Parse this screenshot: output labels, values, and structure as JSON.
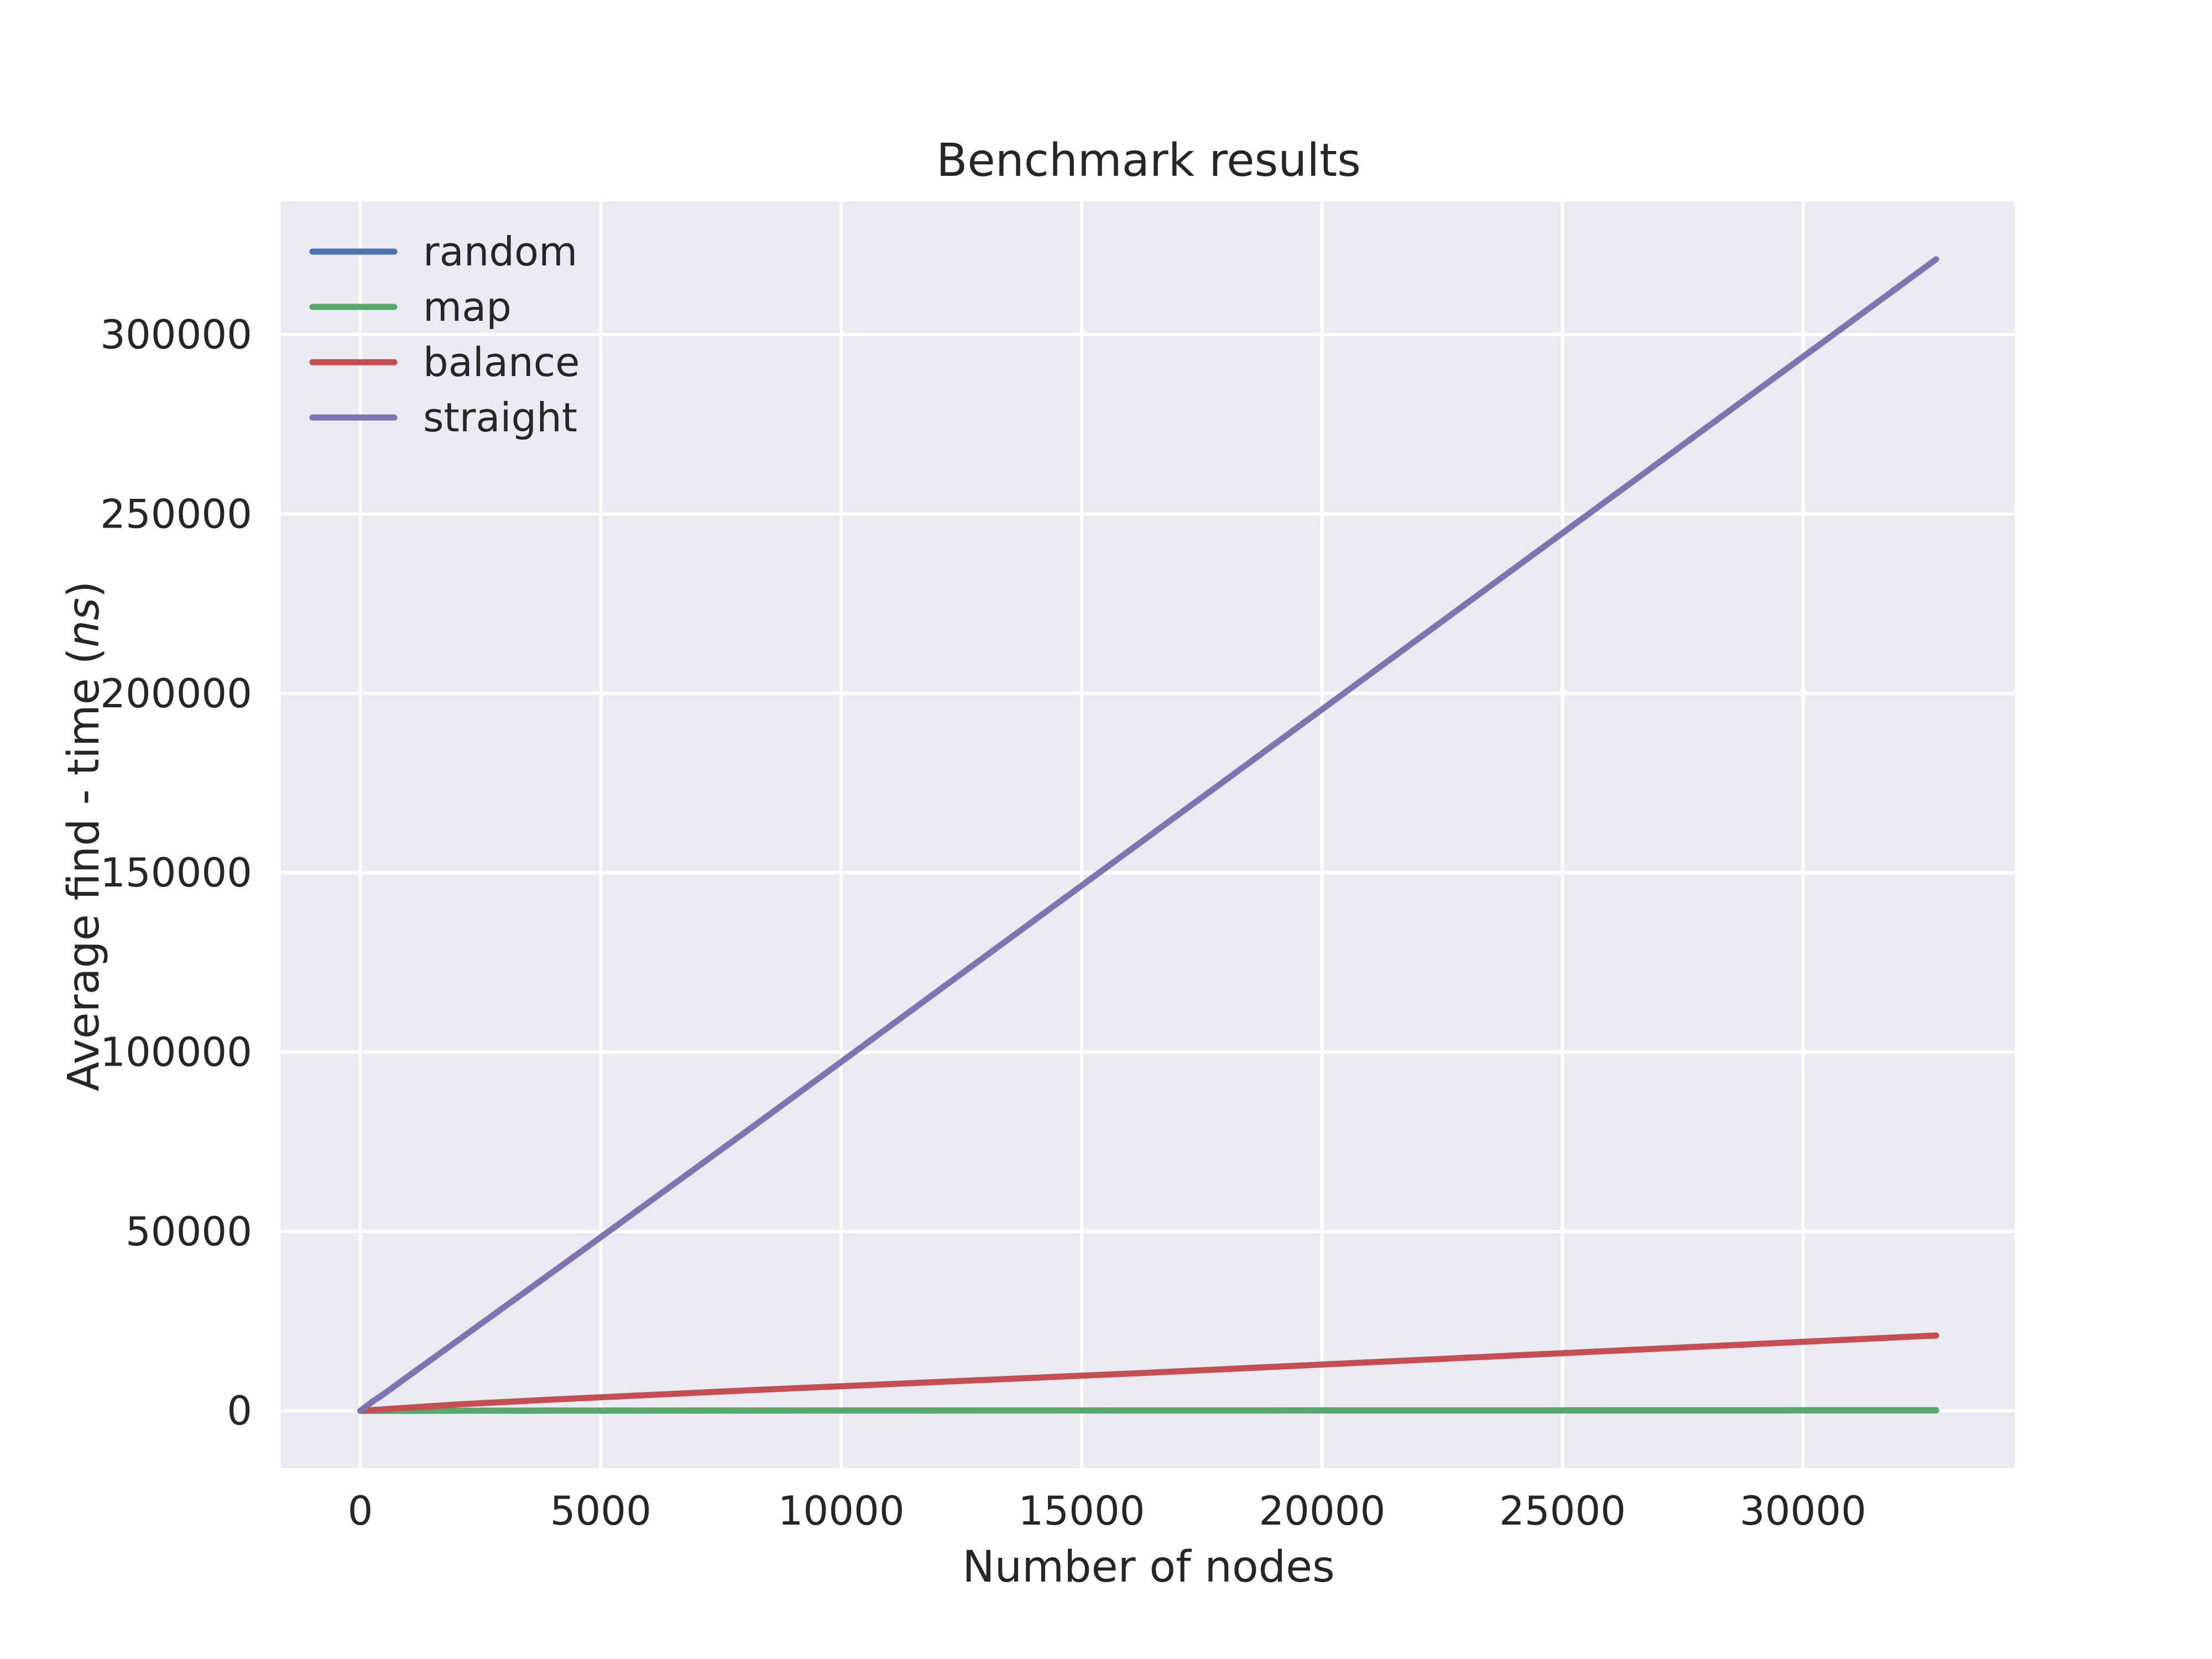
{
  "chart_data": {
    "type": "line",
    "title": "Benchmark results",
    "xlabel": "Number of nodes",
    "ylabel": {
      "prefix": "Average find - time (",
      "italic": "ns",
      "suffix": ")"
    },
    "xlim": [
      -1650,
      34400
    ],
    "ylim": [
      -16000,
      337000
    ],
    "x_ticks": [
      0,
      5000,
      10000,
      15000,
      20000,
      25000,
      30000
    ],
    "y_ticks": [
      0,
      50000,
      100000,
      150000,
      200000,
      250000,
      300000
    ],
    "grid": true,
    "background": "#EAEAF2",
    "legend_position": "top-left",
    "series": [
      {
        "name": "random",
        "color": "#4C72B0",
        "x": [
          0,
          4096,
          8192,
          16384,
          32768
        ],
        "y": [
          0,
          40,
          60,
          90,
          120
        ]
      },
      {
        "name": "map",
        "color": "#55A868",
        "x": [
          0,
          4096,
          8192,
          16384,
          32768
        ],
        "y": [
          0,
          60,
          90,
          130,
          180
        ]
      },
      {
        "name": "balance",
        "color": "#C44E52",
        "x": [
          0,
          2048,
          4096,
          8192,
          16384,
          32768
        ],
        "y": [
          0,
          1800,
          3200,
          5800,
          10600,
          21000
        ]
      },
      {
        "name": "straight",
        "color": "#8172B2",
        "x": [
          0,
          256,
          512,
          1024,
          2048,
          4096,
          8192,
          16384,
          32768
        ],
        "y": [
          0,
          2600,
          4900,
          9900,
          19800,
          39600,
          79500,
          160000,
          321000
        ]
      }
    ]
  }
}
